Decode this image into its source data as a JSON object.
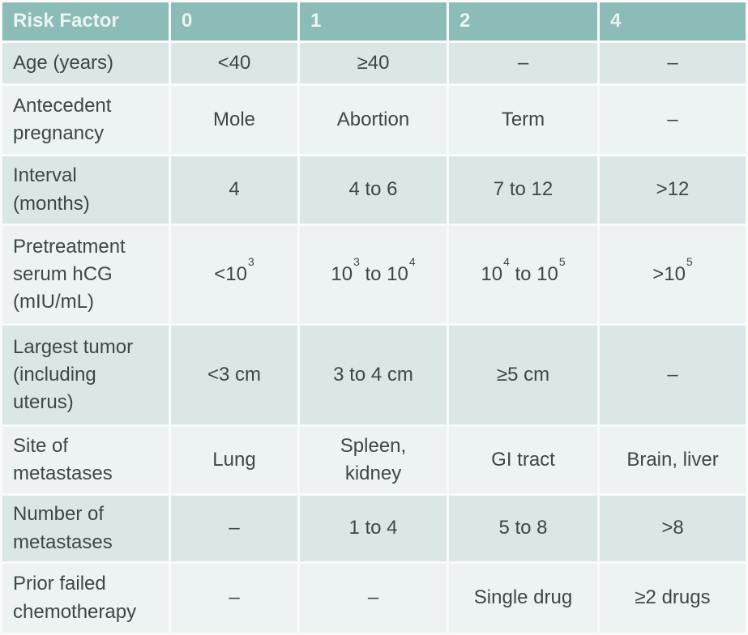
{
  "table": {
    "columns": [
      "Risk Factor",
      "0",
      "1",
      "2",
      "4"
    ],
    "rows": [
      {
        "label": "Age (years)",
        "values": [
          "<40",
          "≥40",
          "–",
          "–"
        ]
      },
      {
        "label": "Antecedent pregnancy",
        "values": [
          "Mole",
          "Abortion",
          "Term",
          "–"
        ]
      },
      {
        "label": "Interval (months)",
        "values": [
          "4",
          "4 to 6",
          "7 to 12",
          ">12"
        ]
      },
      {
        "label": "Pretreatment serum hCG (mIU/mL)",
        "values": [
          "<10^3^",
          "10^3^ to 10^4^",
          "10^4^ to 10^5^",
          ">10^5^"
        ]
      },
      {
        "label": "Largest tumor (including uterus)",
        "values": [
          "<3 cm",
          "3 to 4 cm",
          "≥5 cm",
          "–"
        ]
      },
      {
        "label": "Site of metastases",
        "values": [
          "Lung",
          "Spleen, kidney",
          "GI tract",
          "Brain, liver"
        ]
      },
      {
        "label": "Number of metastases",
        "values": [
          "–",
          "1 to 4",
          "5 to 8",
          ">8"
        ]
      },
      {
        "label": "Prior failed chemotherapy",
        "values": [
          "–",
          "–",
          "Single drug",
          "≥2 drugs"
        ]
      }
    ],
    "colors": {
      "header_bg": "#8cbcb8",
      "header_text": "#ecf3f2",
      "band_bg": "#dbe7e6",
      "light_bg": "#edf3f2",
      "text": "#3d474a",
      "gap": "#f8fbfa"
    }
  }
}
